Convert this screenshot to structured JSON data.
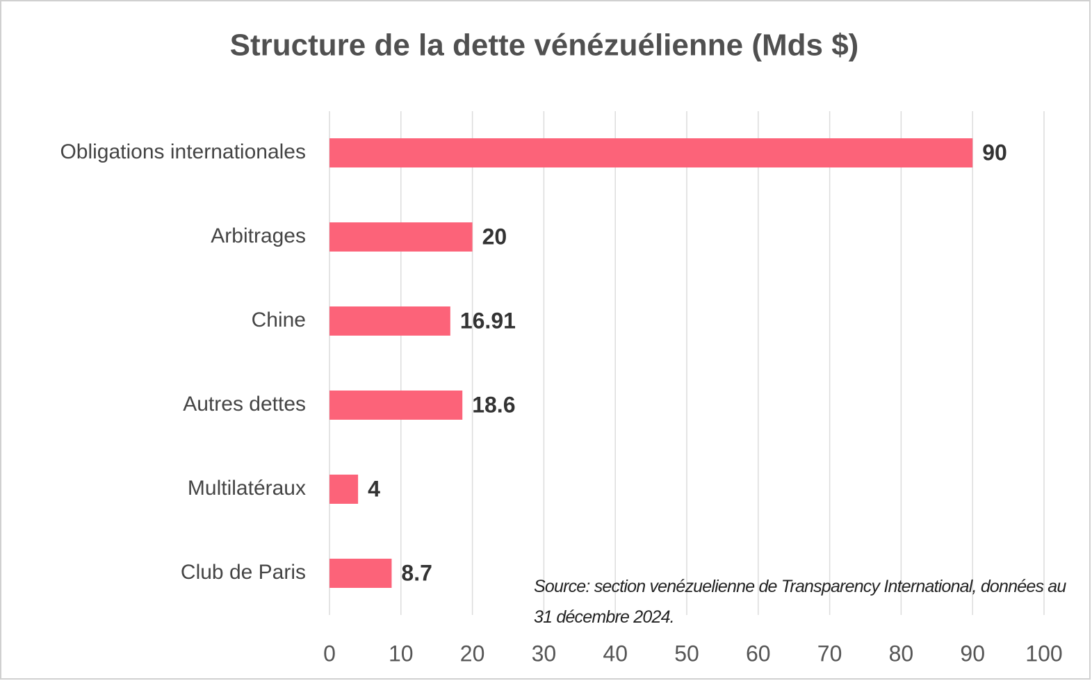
{
  "chart_data": {
    "type": "bar",
    "orientation": "horizontal",
    "title": "Structure de la dette vénézuélienne (Mds $)",
    "categories": [
      "Obligations internationales",
      "Arbitrages",
      "Chine",
      "Autres dettes",
      "Multilatéraux",
      "Club de Paris"
    ],
    "values": [
      90,
      20,
      16.91,
      18.6,
      4,
      8.7
    ],
    "color": "#fc6379",
    "xlim": [
      0,
      100
    ],
    "xticks": [
      0,
      10,
      20,
      30,
      40,
      50,
      60,
      70,
      80,
      90,
      100
    ],
    "grid": true,
    "annotation": "Source: section venézuelienne de Transparency International, données au 31 décembre 2024."
  }
}
